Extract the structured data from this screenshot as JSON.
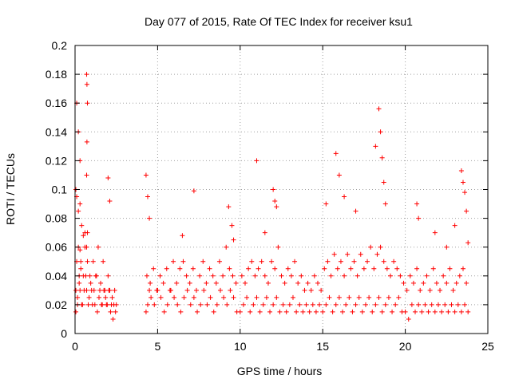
{
  "chart_data": {
    "type": "scatter",
    "title": "Day 077 of 2015, Rate Of TEC Index for receiver ksu1",
    "xlabel": "GPS time / hours",
    "ylabel": "ROTI / TECUs",
    "xlim": [
      0,
      25
    ],
    "ylim": [
      0,
      0.2
    ],
    "xticks": [
      0,
      5,
      10,
      15,
      20,
      25
    ],
    "xtick_labels": [
      "0",
      "5",
      "10",
      "15",
      "20",
      "25"
    ],
    "yticks": [
      0,
      0.02,
      0.04,
      0.06,
      0.08,
      0.1,
      0.12,
      0.14,
      0.16,
      0.18,
      0.2
    ],
    "ytick_labels": [
      "0",
      "0.02",
      "0.04",
      "0.06",
      "0.08",
      "0.1",
      "0.12",
      "0.14",
      "0.16",
      "0.18",
      "0.2"
    ],
    "grid": true,
    "marker": "+",
    "color": "#ff0000",
    "series": [
      {
        "name": "ROTI",
        "x": [
          0.05,
          0.1,
          0.15,
          0.2,
          0.25,
          0.3,
          0.35,
          0.4,
          0.5,
          0.6,
          0.7,
          0.75,
          0.8,
          0.9,
          1.0,
          1.1,
          1.2,
          1.3,
          1.4,
          1.5,
          1.6,
          1.7,
          1.8,
          1.9,
          2.0,
          2.1,
          2.2,
          2.3,
          2.4,
          2.5,
          0.05,
          0.15,
          0.25,
          0.35,
          0.45,
          0.55,
          0.65,
          0.7,
          0.75,
          0.85,
          0.95,
          1.05,
          1.15,
          1.25,
          1.35,
          1.45,
          1.55,
          1.65,
          1.75,
          1.85,
          1.95,
          2.05,
          2.15,
          2.25,
          2.35,
          2.45,
          0.05,
          0.1,
          0.2,
          0.3,
          0.7,
          0.72,
          0.75,
          0.72,
          0.1,
          0.2,
          0.3,
          0.6,
          0.7,
          2.0,
          2.1,
          0.4,
          0.5,
          0.3,
          4.3,
          4.4,
          4.5,
          4.6,
          4.8,
          5.0,
          5.2,
          5.4,
          5.6,
          5.8,
          6.0,
          6.2,
          6.4,
          6.6,
          6.8,
          7.0,
          7.2,
          7.4,
          7.6,
          7.8,
          8.0,
          8.2,
          8.4,
          8.6,
          8.8,
          9.0,
          9.2,
          9.4,
          9.6,
          9.8,
          4.35,
          4.55,
          4.75,
          4.95,
          5.15,
          5.35,
          5.55,
          5.75,
          5.95,
          6.15,
          6.35,
          6.55,
          6.75,
          6.95,
          7.15,
          7.35,
          7.55,
          7.75,
          7.95,
          8.15,
          8.35,
          8.55,
          8.75,
          8.95,
          9.15,
          9.35,
          9.55,
          9.75,
          4.3,
          4.4,
          4.5,
          6.5,
          7.2,
          9.3,
          9.5,
          9.6,
          10.0,
          10.2,
          10.4,
          10.6,
          10.8,
          11.0,
          11.2,
          11.4,
          11.6,
          11.8,
          12.0,
          12.2,
          12.4,
          12.6,
          12.8,
          13.0,
          13.2,
          13.4,
          13.6,
          13.8,
          14.0,
          14.2,
          14.4,
          14.6,
          14.8,
          10.1,
          10.3,
          10.5,
          10.7,
          10.9,
          11.1,
          11.3,
          11.5,
          11.7,
          11.9,
          12.1,
          12.3,
          12.5,
          12.7,
          12.9,
          13.1,
          13.3,
          13.5,
          13.7,
          13.9,
          14.1,
          14.3,
          14.5,
          14.7,
          14.9,
          11.0,
          12.0,
          12.1,
          12.2,
          11.5,
          15.0,
          15.2,
          15.4,
          15.6,
          15.8,
          16.0,
          16.2,
          16.4,
          16.6,
          16.8,
          17.0,
          17.2,
          17.4,
          17.6,
          17.8,
          18.0,
          18.2,
          18.4,
          18.6,
          18.8,
          19.0,
          19.2,
          19.4,
          19.6,
          19.8,
          15.1,
          15.3,
          15.5,
          15.7,
          15.9,
          16.1,
          16.3,
          16.5,
          16.7,
          16.9,
          17.1,
          17.3,
          17.5,
          17.7,
          17.9,
          18.1,
          18.3,
          18.5,
          18.7,
          18.9,
          19.1,
          19.3,
          19.5,
          19.7,
          19.9,
          15.2,
          15.8,
          16.0,
          16.3,
          17.0,
          18.2,
          18.4,
          18.5,
          18.6,
          18.7,
          18.8,
          20.0,
          20.2,
          20.4,
          20.6,
          20.8,
          21.0,
          21.2,
          21.4,
          21.6,
          21.8,
          22.0,
          22.2,
          22.4,
          22.6,
          22.8,
          23.0,
          23.2,
          23.4,
          23.6,
          23.8,
          20.1,
          20.3,
          20.5,
          20.7,
          20.9,
          21.1,
          21.3,
          21.5,
          21.7,
          21.9,
          22.1,
          22.3,
          22.5,
          22.7,
          22.9,
          23.1,
          23.3,
          23.5,
          23.7,
          20.7,
          20.8,
          21.8,
          22.5,
          23.0,
          23.4,
          23.5,
          23.6,
          23.7,
          23.8
        ],
        "y": [
          0.03,
          0.05,
          0.02,
          0.06,
          0.04,
          0.03,
          0.05,
          0.02,
          0.04,
          0.06,
          0.03,
          0.05,
          0.02,
          0.04,
          0.03,
          0.05,
          0.02,
          0.04,
          0.06,
          0.03,
          0.02,
          0.05,
          0.03,
          0.02,
          0.04,
          0.03,
          0.02,
          0.01,
          0.03,
          0.02,
          0.015,
          0.025,
          0.035,
          0.045,
          0.02,
          0.03,
          0.04,
          0.06,
          0.07,
          0.025,
          0.035,
          0.02,
          0.03,
          0.04,
          0.015,
          0.025,
          0.035,
          0.02,
          0.03,
          0.025,
          0.02,
          0.03,
          0.015,
          0.025,
          0.02,
          0.015,
          0.1,
          0.16,
          0.14,
          0.12,
          0.18,
          0.173,
          0.16,
          0.133,
          0.095,
          0.085,
          0.09,
          0.07,
          0.11,
          0.108,
          0.092,
          0.075,
          0.068,
          0.058,
          0.015,
          0.02,
          0.03,
          0.025,
          0.02,
          0.03,
          0.025,
          0.015,
          0.02,
          0.03,
          0.025,
          0.02,
          0.015,
          0.025,
          0.03,
          0.02,
          0.025,
          0.015,
          0.02,
          0.03,
          0.02,
          0.025,
          0.015,
          0.02,
          0.03,
          0.025,
          0.02,
          0.03,
          0.025,
          0.015,
          0.04,
          0.035,
          0.045,
          0.03,
          0.04,
          0.035,
          0.045,
          0.03,
          0.05,
          0.035,
          0.045,
          0.05,
          0.04,
          0.035,
          0.045,
          0.03,
          0.04,
          0.05,
          0.035,
          0.045,
          0.04,
          0.035,
          0.05,
          0.04,
          0.06,
          0.045,
          0.04,
          0.035,
          0.11,
          0.095,
          0.08,
          0.068,
          0.099,
          0.088,
          0.075,
          0.065,
          0.015,
          0.02,
          0.025,
          0.015,
          0.02,
          0.025,
          0.015,
          0.02,
          0.025,
          0.015,
          0.02,
          0.025,
          0.015,
          0.02,
          0.015,
          0.02,
          0.025,
          0.015,
          0.02,
          0.015,
          0.02,
          0.015,
          0.02,
          0.015,
          0.02,
          0.04,
          0.035,
          0.045,
          0.05,
          0.04,
          0.045,
          0.05,
          0.04,
          0.035,
          0.05,
          0.045,
          0.06,
          0.04,
          0.035,
          0.045,
          0.04,
          0.05,
          0.035,
          0.04,
          0.03,
          0.035,
          0.03,
          0.04,
          0.035,
          0.03,
          0.12,
          0.1,
          0.092,
          0.088,
          0.07,
          0.015,
          0.02,
          0.025,
          0.015,
          0.02,
          0.025,
          0.015,
          0.02,
          0.025,
          0.015,
          0.02,
          0.025,
          0.015,
          0.02,
          0.025,
          0.015,
          0.02,
          0.025,
          0.015,
          0.02,
          0.025,
          0.015,
          0.02,
          0.025,
          0.015,
          0.045,
          0.05,
          0.04,
          0.055,
          0.045,
          0.05,
          0.04,
          0.055,
          0.045,
          0.05,
          0.04,
          0.055,
          0.045,
          0.05,
          0.06,
          0.045,
          0.055,
          0.06,
          0.05,
          0.045,
          0.04,
          0.05,
          0.045,
          0.04,
          0.035,
          0.09,
          0.125,
          0.11,
          0.095,
          0.085,
          0.13,
          0.156,
          0.14,
          0.122,
          0.105,
          0.09,
          0.015,
          0.01,
          0.02,
          0.015,
          0.02,
          0.015,
          0.02,
          0.015,
          0.02,
          0.015,
          0.02,
          0.015,
          0.02,
          0.015,
          0.02,
          0.015,
          0.02,
          0.015,
          0.02,
          0.015,
          0.03,
          0.04,
          0.035,
          0.045,
          0.03,
          0.035,
          0.04,
          0.03,
          0.045,
          0.035,
          0.03,
          0.04,
          0.035,
          0.045,
          0.03,
          0.035,
          0.04,
          0.045,
          0.035,
          0.09,
          0.08,
          0.07,
          0.06,
          0.075,
          0.113,
          0.105,
          0.098,
          0.085,
          0.063
        ]
      }
    ]
  }
}
